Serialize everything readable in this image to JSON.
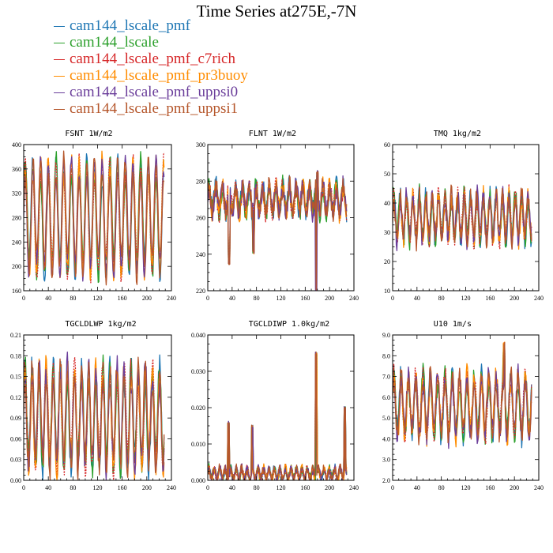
{
  "title": "Time Series at275E,-7N",
  "legend": [
    {
      "name": "cam144_lscale_pmf",
      "color": "#1f77b4"
    },
    {
      "name": "cam144_lscale",
      "color": "#2ca02c"
    },
    {
      "name": "cam144_lscale_pmf_c7rich",
      "color": "#d62728"
    },
    {
      "name": "cam144_lscale_pmf_pr3buoy",
      "color": "#ff8c00"
    },
    {
      "name": "cam144_lscale_pmf_uppsi0",
      "color": "#6a3d9a"
    },
    {
      "name": "cam144_lscale_pmf_uppsi1",
      "color": "#b5562b"
    }
  ],
  "chart_data": [
    {
      "type": "line",
      "name": "FSNT",
      "title": "FSNT  1W/m2",
      "xlim": [
        0,
        240
      ],
      "ylim": [
        160,
        400
      ],
      "xticks": [
        "0",
        "40",
        "80",
        "120",
        "160",
        "200",
        "240"
      ],
      "yticks": [
        "160",
        "200",
        "240",
        "280",
        "320",
        "360",
        "400"
      ],
      "x_end": 228,
      "mean": 280,
      "amp": 82,
      "period": 12.5,
      "noise": 10,
      "spikes": []
    },
    {
      "type": "line",
      "name": "FLNT",
      "title": "FLNT  1W/m2",
      "xlim": [
        0,
        240
      ],
      "ylim": [
        220,
        300
      ],
      "xticks": [
        "0",
        "40",
        "80",
        "120",
        "160",
        "200",
        "240"
      ],
      "yticks": [
        "220",
        "240",
        "260",
        "280",
        "300"
      ],
      "x_end": 228,
      "mean": 270,
      "amp": 7,
      "period": 11,
      "noise": 5,
      "spikes": [
        [
          35,
          235
        ],
        [
          75,
          241
        ],
        [
          178,
          220
        ],
        [
          180,
          285
        ]
      ]
    },
    {
      "type": "line",
      "name": "TMQ",
      "title": "TMQ  1kg/m2",
      "xlim": [
        0,
        240
      ],
      "ylim": [
        10,
        60
      ],
      "xticks": [
        "0",
        "40",
        "80",
        "120",
        "160",
        "200",
        "240"
      ],
      "yticks": [
        "10",
        "20",
        "30",
        "40",
        "50",
        "60"
      ],
      "x_end": 228,
      "mean": 35,
      "amp": 7,
      "period": 10.5,
      "noise": 3,
      "spikes": []
    },
    {
      "type": "line",
      "name": "TGCLDLWP",
      "title": "TGCLDLWP  1kg/m2",
      "xlim": [
        0,
        240
      ],
      "ylim": [
        0.0,
        0.21
      ],
      "xticks": [
        "0",
        "40",
        "80",
        "120",
        "160",
        "200",
        "240"
      ],
      "yticks": [
        "0.00",
        "0.03",
        "0.06",
        "0.09",
        "0.12",
        "0.15",
        "0.18",
        "0.21"
      ],
      "x_end": 228,
      "mean": 0.09,
      "amp": 0.065,
      "period": 11.5,
      "noise": 0.015,
      "spikes": []
    },
    {
      "type": "line",
      "name": "TGCLDIWP",
      "title": "TGCLDIWP  1.0kg/m2",
      "xlim": [
        0,
        240
      ],
      "ylim": [
        0.0,
        0.04
      ],
      "xticks": [
        "0",
        "40",
        "80",
        "120",
        "160",
        "200",
        "240"
      ],
      "yticks": [
        "0.000",
        "0.010",
        "0.020",
        "0.030",
        "0.040"
      ],
      "x_end": 228,
      "mean": 0.0018,
      "amp": 0.0014,
      "period": 9,
      "noise": 0.0012,
      "spikes": [
        [
          34,
          0.016
        ],
        [
          73,
          0.015
        ],
        [
          178,
          0.035
        ],
        [
          225,
          0.02
        ]
      ]
    },
    {
      "type": "line",
      "name": "U10",
      "title": "U10  1m/s",
      "xlim": [
        0,
        240
      ],
      "ylim": [
        2.0,
        9.0
      ],
      "xticks": [
        "0",
        "40",
        "80",
        "120",
        "160",
        "200",
        "240"
      ],
      "yticks": [
        "2.0",
        "3.0",
        "4.0",
        "5.0",
        "6.0",
        "7.0",
        "8.0",
        "9.0"
      ],
      "x_end": 228,
      "mean": 5.6,
      "amp": 1.3,
      "period": 12,
      "noise": 0.45,
      "spikes": [
        [
          183,
          8.6
        ]
      ]
    }
  ]
}
